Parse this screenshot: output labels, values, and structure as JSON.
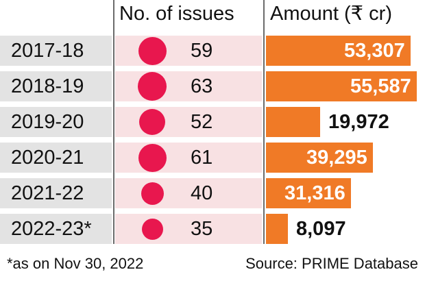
{
  "chart_data": {
    "type": "table",
    "columns": [
      "No. of issues",
      "Amount (₹ cr)"
    ],
    "categories": [
      "2017-18",
      "2018-19",
      "2019-20",
      "2020-21",
      "2021-22",
      "2022-23*"
    ],
    "series": [
      {
        "name": "No. of issues",
        "values": [
          59,
          63,
          52,
          61,
          40,
          35
        ]
      },
      {
        "name": "Amount (₹ cr)",
        "values": [
          53307,
          55587,
          19972,
          39295,
          31316,
          8097
        ],
        "labels": [
          "53,307",
          "55,587",
          "19,972",
          "39,295",
          "31,316",
          "8,097"
        ]
      }
    ],
    "colors": {
      "bar": "#f07a26",
      "dot": "#e8174e",
      "year_bg": "#e3e3e3",
      "issue_bg": "#f8e1e3"
    }
  },
  "headers": {
    "issues": "No. of issues",
    "amount": "Amount (₹ cr)"
  },
  "footnote": "*as on Nov 30, 2022",
  "source": "Source: PRIME Database"
}
